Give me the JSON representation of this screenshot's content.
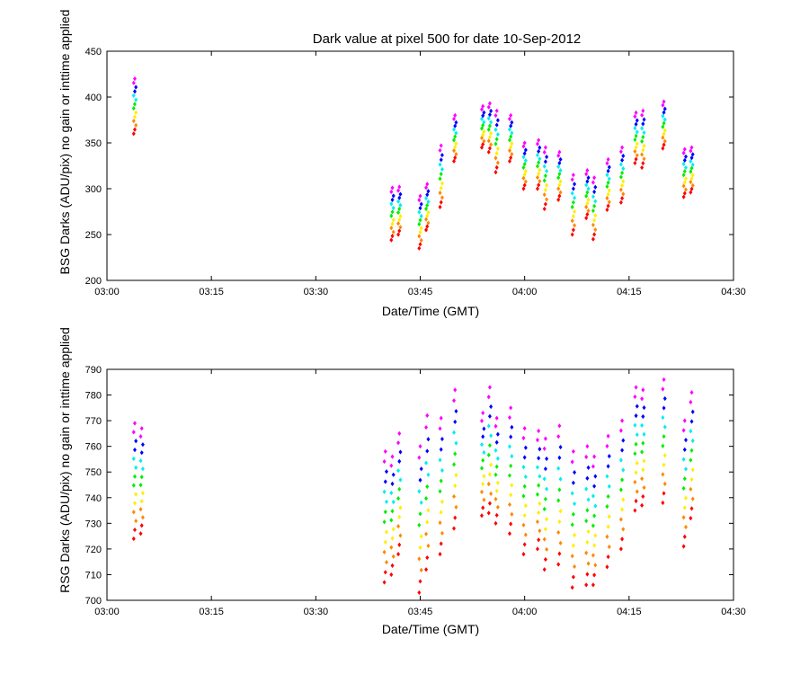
{
  "chart_data": [
    {
      "type": "scatter",
      "title": "Dark value at pixel 500 for date 10-Sep-2012",
      "xlabel": "Date/Time (GMT)",
      "ylabel": "BSG Darks (ADU/pix) no gain or inttime applied",
      "xlim": [
        "03:00",
        "04:30"
      ],
      "xticks": [
        "03:00",
        "03:15",
        "03:30",
        "03:45",
        "04:00",
        "04:15",
        "04:30"
      ],
      "ylim": [
        200,
        450
      ],
      "yticks": [
        200,
        250,
        300,
        350,
        400,
        450
      ],
      "grid": false,
      "color_scale": [
        "#ff0000",
        "#ff8800",
        "#ffee00",
        "#00ee00",
        "#00eeee",
        "#0000ff",
        "#ff00ff"
      ],
      "clusters": [
        {
          "time": "03:04",
          "y": [
            360,
            420
          ]
        },
        {
          "time": "03:41",
          "y": [
            244,
            301
          ]
        },
        {
          "time": "03:42",
          "y": [
            250,
            302
          ]
        },
        {
          "time": "03:45",
          "y": [
            235,
            292
          ]
        },
        {
          "time": "03:46",
          "y": [
            255,
            305
          ]
        },
        {
          "time": "03:48",
          "y": [
            280,
            347
          ]
        },
        {
          "time": "03:50",
          "y": [
            330,
            380
          ]
        },
        {
          "time": "03:54",
          "y": [
            345,
            390
          ]
        },
        {
          "time": "03:55",
          "y": [
            340,
            393
          ]
        },
        {
          "time": "03:56",
          "y": [
            318,
            385
          ]
        },
        {
          "time": "03:58",
          "y": [
            330,
            380
          ]
        },
        {
          "time": "04:00",
          "y": [
            300,
            350
          ]
        },
        {
          "time": "04:02",
          "y": [
            300,
            353
          ]
        },
        {
          "time": "04:03",
          "y": [
            278,
            345
          ]
        },
        {
          "time": "04:05",
          "y": [
            288,
            340
          ]
        },
        {
          "time": "04:07",
          "y": [
            250,
            315
          ]
        },
        {
          "time": "04:09",
          "y": [
            268,
            320
          ]
        },
        {
          "time": "04:10",
          "y": [
            245,
            312
          ]
        },
        {
          "time": "04:12",
          "y": [
            277,
            332
          ]
        },
        {
          "time": "04:14",
          "y": [
            285,
            345
          ]
        },
        {
          "time": "04:16",
          "y": [
            328,
            383
          ]
        },
        {
          "time": "04:17",
          "y": [
            323,
            385
          ]
        },
        {
          "time": "04:20",
          "y": [
            344,
            395
          ]
        },
        {
          "time": "04:23",
          "y": [
            291,
            343
          ]
        },
        {
          "time": "04:24",
          "y": [
            296,
            345
          ]
        }
      ]
    },
    {
      "type": "scatter",
      "title": "",
      "xlabel": "Date/Time (GMT)",
      "ylabel": "RSG Darks (ADU/pix) no gain or inttime applied",
      "xlim": [
        "03:00",
        "04:30"
      ],
      "xticks": [
        "03:00",
        "03:15",
        "03:30",
        "03:45",
        "04:00",
        "04:15",
        "04:30"
      ],
      "ylim": [
        700,
        790
      ],
      "yticks": [
        700,
        710,
        720,
        730,
        740,
        750,
        760,
        770,
        780,
        790
      ],
      "grid": false,
      "color_scale": [
        "#ff0000",
        "#ff8800",
        "#ffee00",
        "#00ee00",
        "#00eeee",
        "#0000ff",
        "#ff00ff"
      ],
      "clusters": [
        {
          "time": "03:04",
          "y": [
            724,
            769
          ]
        },
        {
          "time": "03:05",
          "y": [
            726,
            767
          ]
        },
        {
          "time": "03:40",
          "y": [
            707,
            758
          ]
        },
        {
          "time": "03:41",
          "y": [
            710,
            756
          ]
        },
        {
          "time": "03:42",
          "y": [
            718,
            765
          ]
        },
        {
          "time": "03:45",
          "y": [
            703,
            760
          ]
        },
        {
          "time": "03:46",
          "y": [
            712,
            772
          ]
        },
        {
          "time": "03:48",
          "y": [
            718,
            771
          ]
        },
        {
          "time": "03:50",
          "y": [
            728,
            782
          ]
        },
        {
          "time": "03:54",
          "y": [
            733,
            773
          ]
        },
        {
          "time": "03:55",
          "y": [
            734,
            783
          ]
        },
        {
          "time": "03:56",
          "y": [
            730,
            771
          ]
        },
        {
          "time": "03:58",
          "y": [
            726,
            775
          ]
        },
        {
          "time": "04:00",
          "y": [
            718,
            767
          ]
        },
        {
          "time": "04:02",
          "y": [
            720,
            766
          ]
        },
        {
          "time": "04:03",
          "y": [
            712,
            763
          ]
        },
        {
          "time": "04:05",
          "y": [
            714,
            768
          ]
        },
        {
          "time": "04:07",
          "y": [
            705,
            758
          ]
        },
        {
          "time": "04:09",
          "y": [
            706,
            760
          ]
        },
        {
          "time": "04:10",
          "y": [
            706,
            756
          ]
        },
        {
          "time": "04:12",
          "y": [
            713,
            764
          ]
        },
        {
          "time": "04:14",
          "y": [
            720,
            770
          ]
        },
        {
          "time": "04:16",
          "y": [
            735,
            783
          ]
        },
        {
          "time": "04:17",
          "y": [
            737,
            782
          ]
        },
        {
          "time": "04:20",
          "y": [
            738,
            786
          ]
        },
        {
          "time": "04:23",
          "y": [
            721,
            770
          ]
        },
        {
          "time": "04:24",
          "y": [
            732,
            781
          ]
        }
      ]
    }
  ]
}
